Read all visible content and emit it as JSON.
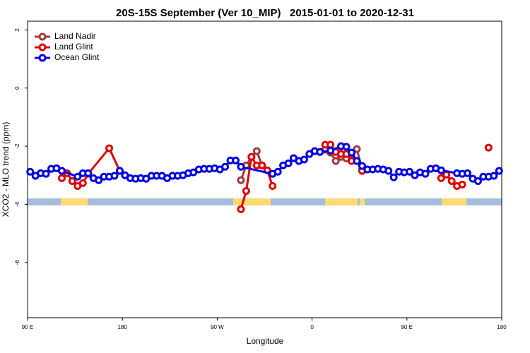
{
  "chart_data": {
    "type": "line",
    "title": "20S-15S September (Ver 10_MIP)   2015-01-01 to 2020-12-31",
    "xlabel": "Longitude",
    "ylabel": "XCO2 - MLO trend (ppm)",
    "xlim": [
      90,
      540
    ],
    "xticks": [
      {
        "value": 90,
        "label": "90 E"
      },
      {
        "value": 180,
        "label": "180"
      },
      {
        "value": 270,
        "label": "90 W"
      },
      {
        "value": 360,
        "label": "0"
      },
      {
        "value": 450,
        "label": "90 E"
      },
      {
        "value": 540,
        "label": "180"
      }
    ],
    "ylim": [
      -7.9,
      2.3
    ],
    "yticks": [
      2,
      0,
      -2,
      -4,
      -6
    ],
    "legend": "top-left",
    "series": [
      {
        "name": "Land Nadir",
        "color": "#a0393a",
        "x": [
          292.5,
          297.5,
          302.5,
          307.5,
          312.5,
          null,
          372.5,
          377.5,
          382.5,
          387.5,
          392.5,
          397.5,
          402.5,
          407.5
        ],
        "values": [
          -3.17,
          -2.66,
          -2.37,
          -2.17,
          -2.66,
          null,
          -2.12,
          -2.22,
          -2.51,
          -2.37,
          -2.42,
          -2.27,
          -2.1,
          -2.8
        ]
      },
      {
        "name": "Land Glint",
        "color": "#e00000",
        "x": [
          122.5,
          127.5,
          132.5,
          137.5,
          142.5,
          147.5,
          167.5,
          177.5,
          null,
          292.5,
          297.5,
          302.5,
          307.5,
          312.5,
          317.5,
          322.5,
          null,
          372.5,
          377.5,
          382.5,
          387.5,
          392.5,
          397.5,
          402.5,
          407.5,
          null,
          482.5,
          487.5,
          492.5,
          497.5,
          502.5,
          null,
          527.5
        ],
        "values": [
          -3.1,
          -2.93,
          -3.2,
          -3.37,
          -3.27,
          -2.95,
          -2.07,
          -2.85,
          null,
          -4.17,
          -3.54,
          -2.37,
          -2.66,
          -2.66,
          -2.83,
          -3.37,
          null,
          -1.95,
          -1.95,
          -2.2,
          -2.27,
          -2.27,
          -2.51,
          -2.51,
          -2.85,
          null,
          -3.1,
          -2.98,
          -3.2,
          -3.37,
          -3.32,
          null,
          -2.05
        ]
      },
      {
        "name": "Ocean Glint",
        "color": "#0000e0",
        "x": [
          92.5,
          97.5,
          102.5,
          107.5,
          112.5,
          117.5,
          122.5,
          137.5,
          142.5,
          147.5,
          152.5,
          157.5,
          162.5,
          167.5,
          172.5,
          177.5,
          182.5,
          187.5,
          192.5,
          197.5,
          202.5,
          207.5,
          212.5,
          217.5,
          222.5,
          227.5,
          232.5,
          237.5,
          242.5,
          247.5,
          252.5,
          257.5,
          262.5,
          267.5,
          272.5,
          277.5,
          282.5,
          287.5,
          292.5,
          322.5,
          327.5,
          332.5,
          337.5,
          342.5,
          347.5,
          352.5,
          357.5,
          362.5,
          367.5,
          377.5,
          387.5,
          392.5,
          397.5,
          402.5,
          407.5,
          412.5,
          417.5,
          422.5,
          427.5,
          432.5,
          437.5,
          442.5,
          447.5,
          452.5,
          457.5,
          462.5,
          467.5,
          472.5,
          477.5,
          482.5,
          497.5,
          502.5,
          507.5,
          512.5,
          517.5,
          522.5,
          527.5,
          532.5,
          537.5
        ],
        "values": [
          -2.88,
          -3.02,
          -2.93,
          -2.95,
          -2.78,
          -2.76,
          -2.85,
          -3.05,
          -2.93,
          -2.93,
          -3.1,
          -3.17,
          -3.05,
          -3.05,
          -3.02,
          -2.85,
          -3.0,
          -3.1,
          -3.12,
          -3.1,
          -3.12,
          -3.02,
          -3.02,
          -3.02,
          -3.1,
          -3.02,
          -3.02,
          -3.0,
          -2.93,
          -2.9,
          -2.8,
          -2.78,
          -2.78,
          -2.76,
          -2.8,
          -2.71,
          -2.49,
          -2.49,
          -2.71,
          -2.95,
          -2.88,
          -2.66,
          -2.59,
          -2.41,
          -2.51,
          -2.46,
          -2.27,
          -2.17,
          -2.2,
          -2.15,
          -2.0,
          -2.02,
          -2.22,
          -2.51,
          -2.68,
          -2.8,
          -2.8,
          -2.78,
          -2.8,
          -2.85,
          -3.07,
          -2.88,
          -2.9,
          -2.88,
          -3.0,
          -2.9,
          -2.95,
          -2.78,
          -2.76,
          -2.83,
          -2.93,
          -2.95,
          -2.93,
          -3.12,
          -3.2,
          -3.05,
          -3.05,
          -3.02,
          -2.85
        ]
      }
    ]
  }
}
